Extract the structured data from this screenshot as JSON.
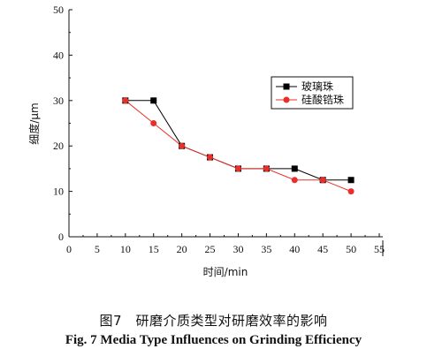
{
  "chart_data": {
    "type": "line",
    "xlabel": "时间/min",
    "ylabel": "细度/μm",
    "xlim": [
      0,
      55
    ],
    "ylim": [
      0,
      50
    ],
    "x_ticks": [
      0,
      5,
      10,
      15,
      20,
      25,
      30,
      35,
      40,
      45,
      50,
      55
    ],
    "y_ticks": [
      0,
      10,
      20,
      30,
      40,
      50
    ],
    "grid": false,
    "legend_position": "top-right",
    "series": [
      {
        "name": "玻璃珠",
        "color": "#000000",
        "marker": "square",
        "x": [
          10,
          15,
          20,
          25,
          30,
          35,
          40,
          45,
          50
        ],
        "y": [
          30,
          30,
          20,
          17.5,
          15,
          15,
          15,
          12.5,
          12.5
        ]
      },
      {
        "name": "硅酸锆珠",
        "color": "#e8302a",
        "marker": "circle",
        "x": [
          10,
          15,
          20,
          25,
          30,
          35,
          40,
          45,
          50
        ],
        "y": [
          30,
          25,
          20,
          17.5,
          15,
          15,
          12.5,
          12.5,
          10
        ]
      }
    ]
  },
  "caption": {
    "chinese": "图7　研磨介质类型对研磨效率的影响",
    "english": "Fig. 7   Media Type Influences on Grinding Efficiency"
  }
}
